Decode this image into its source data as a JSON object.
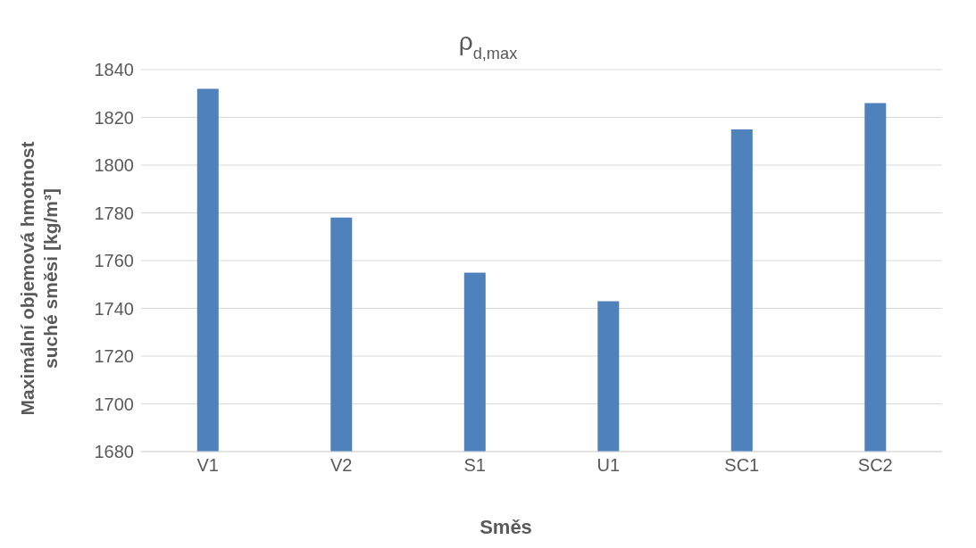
{
  "chart_data": {
    "type": "bar",
    "title": "ρ$_{d,max}$",
    "xlabel": "Směs",
    "ylabel": "Maximální objemová hmotnost\nsuché směsi  [kg/m³]",
    "categories": [
      "V1",
      "V2",
      "S1",
      "U1",
      "SC1",
      "SC2"
    ],
    "values": [
      1832,
      1778,
      1755,
      1743,
      1815,
      1826
    ],
    "color": "#4f81bd",
    "ylim": [
      1680,
      1840
    ],
    "yticks": [
      1680,
      1700,
      1720,
      1740,
      1760,
      1780,
      1800,
      1820,
      1840
    ],
    "grid": "y",
    "legend": false
  }
}
